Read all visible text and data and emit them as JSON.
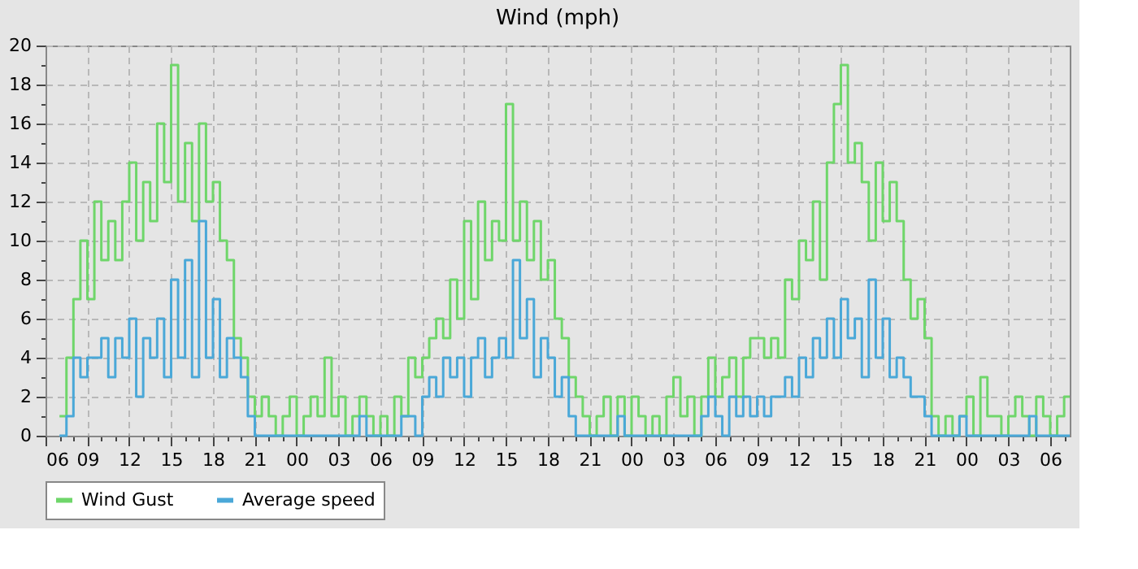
{
  "chart_data": {
    "type": "step",
    "title": "Wind (mph)",
    "xlim": [
      6,
      79.4
    ],
    "ylim": [
      0,
      20
    ],
    "xticks": [
      {
        "value": 6,
        "label": "06"
      },
      {
        "value": 7,
        "label": null
      },
      {
        "value": 8,
        "label": null
      },
      {
        "value": 9,
        "label": "09"
      },
      {
        "value": 10,
        "label": null
      },
      {
        "value": 11,
        "label": null
      },
      {
        "value": 12,
        "label": "12"
      },
      {
        "value": 13,
        "label": null
      },
      {
        "value": 14,
        "label": null
      },
      {
        "value": 15,
        "label": "15"
      },
      {
        "value": 16,
        "label": null
      },
      {
        "value": 17,
        "label": null
      },
      {
        "value": 18,
        "label": "18"
      },
      {
        "value": 19,
        "label": null
      },
      {
        "value": 20,
        "label": null
      },
      {
        "value": 21,
        "label": "21"
      },
      {
        "value": 22,
        "label": null
      },
      {
        "value": 23,
        "label": null
      },
      {
        "value": 24,
        "label": "00"
      },
      {
        "value": 25,
        "label": null
      },
      {
        "value": 26,
        "label": null
      },
      {
        "value": 27,
        "label": "03"
      },
      {
        "value": 28,
        "label": null
      },
      {
        "value": 29,
        "label": null
      },
      {
        "value": 30,
        "label": "06"
      },
      {
        "value": 31,
        "label": null
      },
      {
        "value": 32,
        "label": null
      },
      {
        "value": 33,
        "label": "09"
      },
      {
        "value": 34,
        "label": null
      },
      {
        "value": 35,
        "label": null
      },
      {
        "value": 36,
        "label": "12"
      },
      {
        "value": 37,
        "label": null
      },
      {
        "value": 38,
        "label": null
      },
      {
        "value": 39,
        "label": "15"
      },
      {
        "value": 40,
        "label": null
      },
      {
        "value": 41,
        "label": null
      },
      {
        "value": 42,
        "label": "18"
      },
      {
        "value": 43,
        "label": null
      },
      {
        "value": 44,
        "label": null
      },
      {
        "value": 45,
        "label": "21"
      },
      {
        "value": 46,
        "label": null
      },
      {
        "value": 47,
        "label": null
      },
      {
        "value": 48,
        "label": "00"
      },
      {
        "value": 49,
        "label": null
      },
      {
        "value": 50,
        "label": null
      },
      {
        "value": 51,
        "label": "03"
      },
      {
        "value": 52,
        "label": null
      },
      {
        "value": 53,
        "label": null
      },
      {
        "value": 54,
        "label": "06"
      },
      {
        "value": 55,
        "label": null
      },
      {
        "value": 56,
        "label": null
      },
      {
        "value": 57,
        "label": "09"
      },
      {
        "value": 58,
        "label": null
      },
      {
        "value": 59,
        "label": null
      },
      {
        "value": 60,
        "label": "12"
      },
      {
        "value": 61,
        "label": null
      },
      {
        "value": 62,
        "label": null
      },
      {
        "value": 63,
        "label": "15"
      },
      {
        "value": 64,
        "label": null
      },
      {
        "value": 65,
        "label": null
      },
      {
        "value": 66,
        "label": "18"
      },
      {
        "value": 67,
        "label": null
      },
      {
        "value": 68,
        "label": null
      },
      {
        "value": 69,
        "label": "21"
      },
      {
        "value": 70,
        "label": null
      },
      {
        "value": 71,
        "label": null
      },
      {
        "value": 72,
        "label": "00"
      },
      {
        "value": 73,
        "label": null
      },
      {
        "value": 74,
        "label": null
      },
      {
        "value": 75,
        "label": "03"
      },
      {
        "value": 76,
        "label": null
      },
      {
        "value": 77,
        "label": null
      },
      {
        "value": 78,
        "label": "06"
      },
      {
        "value": 79,
        "label": null
      }
    ],
    "yticks": [
      0,
      {
        "value": 1,
        "label": null
      },
      2,
      {
        "value": 3,
        "label": null
      },
      4,
      {
        "value": 5,
        "label": null
      },
      6,
      {
        "value": 7,
        "label": null
      },
      8,
      {
        "value": 9,
        "label": null
      },
      10,
      {
        "value": 11,
        "label": null
      },
      12,
      {
        "value": 13,
        "label": null
      },
      14,
      {
        "value": 15,
        "label": null
      },
      16,
      {
        "value": 17,
        "label": null
      },
      18,
      {
        "value": 19,
        "label": null
      },
      20
    ],
    "grid": true,
    "legend": "bottom",
    "x": [
      7.0,
      7.5,
      8.0,
      8.5,
      9.0,
      9.5,
      10.0,
      10.5,
      11.0,
      11.5,
      12.0,
      12.5,
      13.0,
      13.5,
      14.0,
      14.5,
      15.0,
      15.5,
      16.0,
      16.5,
      17.0,
      17.5,
      18.0,
      18.5,
      19.0,
      19.5,
      20.0,
      20.5,
      21.0,
      21.5,
      22.0,
      22.5,
      23.0,
      23.5,
      24.0,
      24.5,
      25.0,
      25.5,
      26.0,
      26.5,
      27.0,
      27.5,
      28.0,
      28.5,
      29.0,
      29.5,
      30.0,
      30.5,
      31.0,
      31.5,
      32.0,
      32.5,
      33.0,
      33.5,
      34.0,
      34.5,
      35.0,
      35.5,
      36.0,
      36.5,
      37.0,
      37.5,
      38.0,
      38.5,
      39.0,
      39.5,
      40.0,
      40.5,
      41.0,
      41.5,
      42.0,
      42.5,
      43.0,
      43.5,
      44.0,
      44.5,
      45.0,
      45.5,
      46.0,
      46.5,
      47.0,
      47.5,
      48.0,
      48.5,
      49.0,
      49.5,
      50.0,
      50.5,
      51.0,
      51.5,
      52.0,
      52.5,
      53.0,
      53.5,
      54.0,
      54.5,
      55.0,
      55.5,
      56.0,
      56.5,
      57.0,
      57.5,
      58.0,
      58.5,
      59.0,
      59.5,
      60.0,
      60.5,
      61.0,
      61.5,
      62.0,
      62.5,
      63.0,
      63.5,
      64.0,
      64.5,
      65.0,
      65.5,
      66.0,
      66.5,
      67.0,
      67.5,
      68.0,
      68.5,
      69.0,
      69.5,
      70.0,
      70.5,
      71.0,
      71.5,
      72.0,
      72.5,
      73.0,
      73.5,
      74.0,
      74.5,
      75.0,
      75.5,
      76.0,
      76.5,
      77.0,
      77.5,
      78.0,
      78.5,
      79.0,
      79.4
    ],
    "series": [
      {
        "name": "Wind Gust",
        "color": "#6fd66a",
        "values": [
          1,
          4,
          7,
          10,
          7,
          12,
          9,
          11,
          9,
          12,
          14,
          10,
          13,
          11,
          16,
          13,
          19,
          12,
          15,
          11,
          16,
          12,
          13,
          10,
          9,
          5,
          4,
          2,
          1,
          2,
          1,
          0,
          1,
          2,
          0,
          1,
          2,
          1,
          4,
          1,
          2,
          0,
          1,
          2,
          1,
          0,
          1,
          0,
          2,
          1,
          4,
          3,
          4,
          5,
          6,
          5,
          8,
          6,
          11,
          7,
          12,
          9,
          11,
          10,
          17,
          10,
          12,
          9,
          11,
          8,
          9,
          6,
          5,
          3,
          2,
          1,
          0,
          1,
          2,
          0,
          2,
          0,
          2,
          1,
          0,
          1,
          0,
          2,
          3,
          1,
          2,
          0,
          2,
          4,
          2,
          3,
          4,
          2,
          4,
          5,
          5,
          4,
          5,
          4,
          8,
          7,
          10,
          9,
          12,
          8,
          14,
          17,
          19,
          14,
          15,
          13,
          10,
          14,
          11,
          13,
          11,
          8,
          6,
          7,
          5,
          1,
          0,
          1,
          0,
          1,
          2,
          0,
          3,
          1,
          1,
          0,
          1,
          2,
          1,
          0,
          2,
          1,
          0,
          1,
          2,
          2
        ]
      },
      {
        "name": "Average speed",
        "color": "#4aa8d8",
        "values": [
          0,
          1,
          4,
          3,
          4,
          4,
          5,
          3,
          5,
          4,
          6,
          2,
          5,
          4,
          6,
          3,
          8,
          4,
          9,
          3,
          11,
          4,
          7,
          3,
          5,
          4,
          3,
          1,
          0,
          0,
          0,
          0,
          0,
          0,
          0,
          0,
          0,
          0,
          0,
          0,
          0,
          0,
          0,
          1,
          0,
          0,
          0,
          0,
          0,
          1,
          1,
          0,
          2,
          3,
          2,
          4,
          3,
          4,
          2,
          4,
          5,
          3,
          4,
          5,
          4,
          9,
          5,
          7,
          3,
          5,
          4,
          2,
          3,
          1,
          0,
          0,
          0,
          0,
          0,
          0,
          1,
          0,
          0,
          0,
          0,
          0,
          0,
          0,
          0,
          0,
          0,
          0,
          1,
          2,
          1,
          0,
          2,
          1,
          2,
          1,
          2,
          1,
          2,
          2,
          3,
          2,
          4,
          3,
          5,
          4,
          6,
          4,
          7,
          5,
          6,
          3,
          8,
          4,
          6,
          3,
          4,
          3,
          2,
          2,
          1,
          0,
          0,
          0,
          0,
          1,
          0,
          0,
          0,
          0,
          0,
          0,
          0,
          0,
          0,
          1,
          0,
          0,
          0,
          0,
          0,
          0
        ]
      }
    ]
  }
}
